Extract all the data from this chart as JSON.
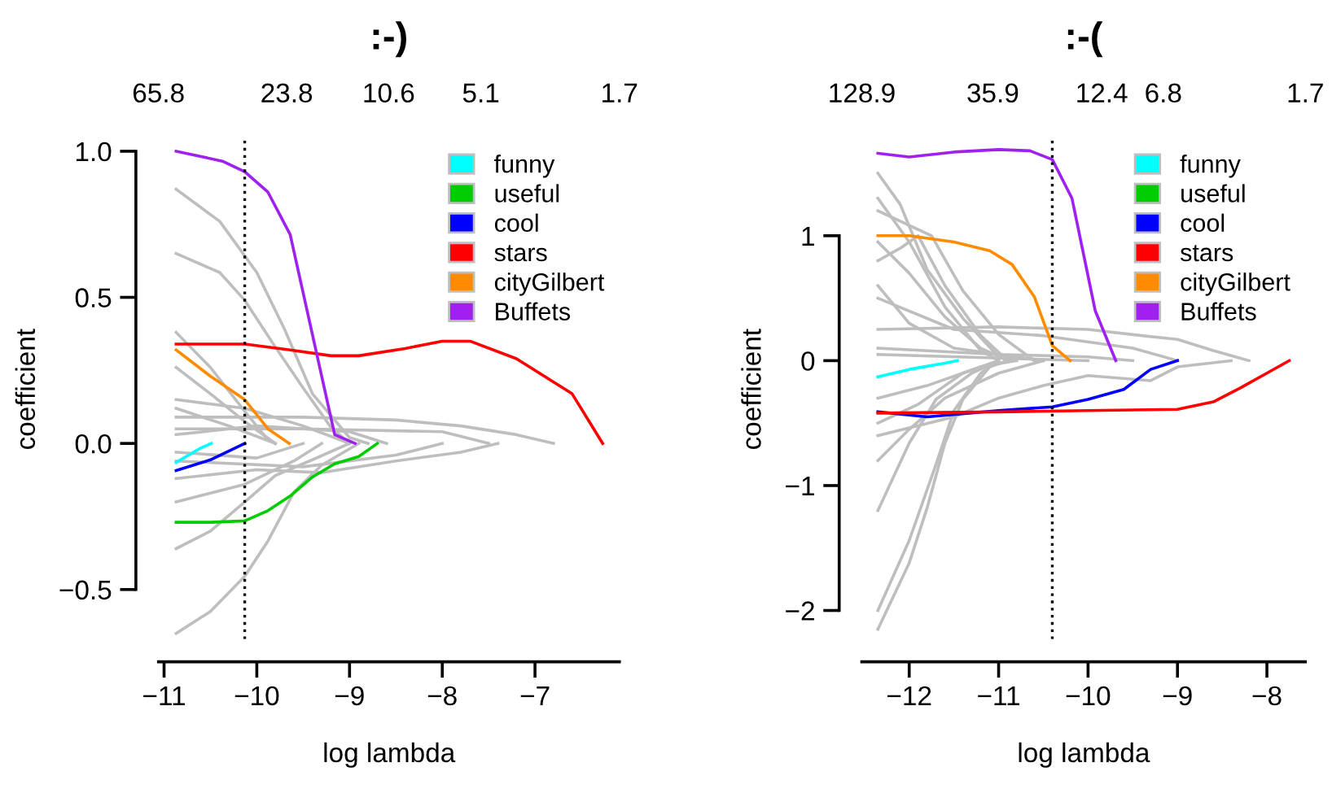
{
  "chart_data": [
    {
      "type": "line",
      "title": ":-)",
      "xlabel": "log lambda",
      "ylabel": "coefficient",
      "xlim": [
        -11.06,
        -6.09
      ],
      "ylim": [
        -0.67,
        1.04
      ],
      "xticks": [
        {
          "value": -11,
          "label": "−11"
        },
        {
          "value": -10,
          "label": "−10"
        },
        {
          "value": -9,
          "label": "−9"
        },
        {
          "value": -8,
          "label": "−8"
        },
        {
          "value": -7,
          "label": "−7"
        }
      ],
      "yticks": [
        {
          "value": -0.5,
          "label": "−0.5"
        },
        {
          "value": 0,
          "label": "0.0"
        },
        {
          "value": 0.5,
          "label": "0.5"
        },
        {
          "value": 1,
          "label": "1.0"
        }
      ],
      "log": "x2",
      "x2lim": [
        65.8,
        1.7
      ],
      "x2ticks": [
        65.8,
        23.8,
        10.6,
        5.1,
        1.7
      ],
      "ref_lines": [
        {
          "axis": "x",
          "value": -10.13,
          "color": "#000000",
          "line_style": "dotted"
        }
      ],
      "legend": "top right",
      "grid": false,
      "line_style": "solid",
      "series": [
        {
          "color": "#bebebe",
          "x": [
            -10.87,
            -10.4,
            -10.0,
            -9.7,
            -9.4,
            -9.0,
            -8.8
          ],
          "values": [
            0.87,
            0.76,
            0.585,
            0.39,
            0.17,
            0.02,
            0
          ]
        },
        {
          "color": "#bebebe",
          "x": [
            -10.87,
            -10.4,
            -10.13,
            -9.8,
            -9.5,
            -9.2,
            -9.0
          ],
          "values": [
            0.65,
            0.585,
            0.49,
            0.33,
            0.19,
            0.055,
            0
          ]
        },
        {
          "color": "#bebebe",
          "x": [
            -10.87,
            -10.5,
            -10.13,
            -9.9,
            -9.8
          ],
          "values": [
            0.38,
            0.26,
            0.11,
            0.02,
            0
          ]
        },
        {
          "color": "#bebebe",
          "x": [
            -10.87,
            -10.5,
            -10.13,
            -9.8
          ],
          "values": [
            0.26,
            0.17,
            0.075,
            0
          ]
        },
        {
          "color": "#bebebe",
          "x": [
            -10.87,
            -10.5,
            -10.13,
            -9.8,
            -9.4,
            -9.0
          ],
          "values": [
            -0.36,
            -0.3,
            -0.2,
            -0.11,
            -0.056,
            0
          ]
        },
        {
          "color": "#bebebe",
          "x": [
            -10.87,
            -10.5,
            -10.13,
            -9.88,
            -9.6,
            -9.3,
            -8.9
          ],
          "values": [
            -0.65,
            -0.575,
            -0.455,
            -0.334,
            -0.167,
            -0.074,
            0
          ]
        },
        {
          "color": "#bebebe",
          "x": [
            -10.87,
            -9.5,
            -8.5,
            -7.8,
            -7.2,
            -6.8
          ],
          "values": [
            0.09,
            0.09,
            0.08,
            0.06,
            0.03,
            0
          ]
        },
        {
          "color": "#bebebe",
          "x": [
            -10.87,
            -10.0,
            -9.3,
            -8.5,
            -7.8,
            -7.4
          ],
          "values": [
            -0.12,
            -0.09,
            -0.1,
            -0.06,
            -0.03,
            0
          ]
        },
        {
          "color": "#bebebe",
          "x": [
            -10.87,
            -9.5,
            -8.0,
            -7.5
          ],
          "values": [
            0.05,
            0.05,
            0.04,
            0
          ]
        },
        {
          "color": "#bebebe",
          "x": [
            -10.87,
            -9.5,
            -8.5,
            -8.0
          ],
          "values": [
            -0.06,
            -0.08,
            -0.04,
            0
          ]
        },
        {
          "color": "#bebebe",
          "x": [
            -10.87,
            -10.13,
            -9.5,
            -9.0
          ],
          "values": [
            0.15,
            0.12,
            0.06,
            0
          ]
        },
        {
          "color": "#bebebe",
          "x": [
            -10.87,
            -10.13,
            -9.6,
            -9.3
          ],
          "values": [
            -0.2,
            -0.14,
            -0.06,
            0
          ]
        },
        {
          "color": "#bebebe",
          "x": [
            -10.87,
            -10.0,
            -9.0,
            -8.6
          ],
          "values": [
            0.03,
            0.06,
            0.04,
            0
          ]
        },
        {
          "color": "#bebebe",
          "x": [
            -10.87,
            -10.0,
            -9.5
          ],
          "values": [
            -0.03,
            -0.05,
            0
          ]
        },
        {
          "color": "#bebebe",
          "x": [
            -10.87,
            -10.3,
            -9.8
          ],
          "values": [
            0.12,
            0.06,
            0
          ]
        },
        {
          "name": "funny",
          "color": "#00ffff",
          "x": [
            -10.87,
            -10.6,
            -10.49
          ],
          "values": [
            -0.065,
            -0.015,
            0
          ]
        },
        {
          "name": "useful",
          "color": "#00cd00",
          "x": [
            -10.87,
            -10.5,
            -10.13,
            -9.88,
            -9.64,
            -9.4,
            -9.16,
            -8.9,
            -8.7
          ],
          "values": [
            -0.27,
            -0.27,
            -0.265,
            -0.23,
            -0.18,
            -0.115,
            -0.07,
            -0.045,
            0
          ]
        },
        {
          "name": "cool",
          "color": "#0000ff",
          "x": [
            -10.87,
            -10.5,
            -10.13
          ],
          "values": [
            -0.093,
            -0.056,
            0
          ]
        },
        {
          "name": "stars",
          "color": "#ff0000",
          "x": [
            -10.87,
            -10.13,
            -9.64,
            -9.2,
            -8.9,
            -8.4,
            -8.0,
            -7.7,
            -7.2,
            -6.9,
            -6.6,
            -6.27
          ],
          "values": [
            0.34,
            0.34,
            0.32,
            0.3,
            0.3,
            0.325,
            0.35,
            0.35,
            0.29,
            0.23,
            0.17,
            0
          ]
        },
        {
          "name": "cityGilbert",
          "color": "#ff8c00",
          "x": [
            -10.87,
            -10.5,
            -10.13,
            -9.88,
            -9.65
          ],
          "values": [
            0.32,
            0.23,
            0.15,
            0.05,
            0
          ]
        },
        {
          "name": "Buffets",
          "color": "#a020f0",
          "x": [
            -10.87,
            -10.37,
            -10.13,
            -9.88,
            -9.64,
            -9.16,
            -8.94
          ],
          "values": [
            1.0,
            0.966,
            0.93,
            0.86,
            0.715,
            0.03,
            0
          ]
        }
      ]
    },
    {
      "type": "line",
      "title": ":-(",
      "xlabel": "log lambda",
      "ylabel": "coefficient",
      "xlim": [
        -12.53,
        -7.57
      ],
      "ylim": [
        -2.23,
        1.77
      ],
      "xticks": [
        {
          "value": -12,
          "label": "−12"
        },
        {
          "value": -11,
          "label": "−11"
        },
        {
          "value": -10,
          "label": "−10"
        },
        {
          "value": -9,
          "label": "−9"
        },
        {
          "value": -8,
          "label": "−8"
        }
      ],
      "yticks": [
        {
          "value": -2,
          "label": "−2"
        },
        {
          "value": -1,
          "label": "−1"
        },
        0,
        1
      ],
      "log": "x2",
      "x2lim": [
        128.9,
        1.7
      ],
      "x2ticks": [
        128.9,
        35.9,
        12.4,
        6.8,
        1.7
      ],
      "ref_lines": [
        {
          "axis": "x",
          "value": -10.4,
          "color": "#000000",
          "line_style": "dotted"
        }
      ],
      "legend": "top right",
      "grid": false,
      "line_style": "solid",
      "series": [
        {
          "color": "#bebebe",
          "x": [
            -12.35,
            -12.1,
            -11.8,
            -11.4,
            -11.0,
            -10.8
          ],
          "values": [
            1.5,
            1.25,
            0.73,
            0.34,
            0.03,
            0
          ]
        },
        {
          "color": "#bebebe",
          "x": [
            -12.35,
            -12.0,
            -11.6,
            -11.2,
            -11.0
          ],
          "values": [
            1.3,
            0.95,
            0.43,
            0.08,
            0
          ]
        },
        {
          "color": "#bebebe",
          "x": [
            -12.35,
            -11.75,
            -11.4,
            -11.0,
            -10.6
          ],
          "values": [
            1.2,
            1.0,
            0.56,
            0.21,
            0
          ]
        },
        {
          "color": "#bebebe",
          "x": [
            -12.35,
            -12.0,
            -11.6,
            -11.2,
            -10.9
          ],
          "values": [
            0.95,
            0.7,
            0.35,
            0.1,
            0
          ]
        },
        {
          "color": "#bebebe",
          "x": [
            -12.35,
            -11.0,
            -10.0,
            -9.4,
            -9.0,
            -8.6,
            -8.2
          ],
          "values": [
            0.25,
            0.27,
            0.25,
            0.2,
            0.17,
            0.08,
            0
          ]
        },
        {
          "color": "#bebebe",
          "x": [
            -12.35,
            -11.5,
            -10.5,
            -9.5,
            -9.0
          ],
          "values": [
            0.5,
            0.25,
            0.2,
            0.1,
            0
          ]
        },
        {
          "color": "#bebebe",
          "x": [
            -12.35,
            -12.0,
            -11.7,
            -11.3,
            -11.0
          ],
          "values": [
            -1.2,
            -0.66,
            -0.31,
            -0.1,
            0
          ]
        },
        {
          "color": "#bebebe",
          "x": [
            -12.35,
            -12.0,
            -11.8,
            -11.6,
            -11.4,
            -11.1,
            -10.9
          ],
          "values": [
            -2.15,
            -1.62,
            -1.18,
            -0.66,
            -0.31,
            -0.05,
            0
          ]
        },
        {
          "color": "#bebebe",
          "x": [
            -12.35,
            -12.0,
            -11.7,
            -11.5,
            -11.2,
            -11.0
          ],
          "values": [
            -2.0,
            -1.44,
            -0.83,
            -0.4,
            -0.1,
            0
          ]
        },
        {
          "color": "#bebebe",
          "x": [
            -12.35,
            -12.0,
            -11.6,
            -11.0,
            -10.5
          ],
          "values": [
            -0.8,
            -0.55,
            -0.3,
            -0.1,
            0
          ]
        },
        {
          "color": "#bebebe",
          "x": [
            -12.35,
            -11.5,
            -11.0,
            -10.5,
            -10.0,
            -9.3,
            -9.0,
            -8.4
          ],
          "values": [
            -0.6,
            -0.45,
            -0.3,
            -0.2,
            -0.12,
            -0.16,
            -0.05,
            0
          ]
        },
        {
          "color": "#bebebe",
          "x": [
            -12.35,
            -12.0,
            -11.5,
            -11.0,
            -10.5
          ],
          "values": [
            0.6,
            0.3,
            0.1,
            0.05,
            0
          ]
        },
        {
          "color": "#bebebe",
          "x": [
            -12.35,
            -11.8,
            -11.2,
            -10.8
          ],
          "values": [
            -0.3,
            -0.2,
            -0.05,
            0
          ]
        },
        {
          "color": "#bebebe",
          "x": [
            -12.35,
            -11.0,
            -10.0,
            -9.5
          ],
          "values": [
            0.1,
            0.05,
            0.03,
            0
          ]
        },
        {
          "color": "#bebebe",
          "x": [
            -12.35,
            -12.1,
            -11.9,
            -11.6,
            -11.2,
            -10.9
          ],
          "values": [
            0.8,
            0.9,
            1.0,
            0.6,
            0.2,
            0
          ]
        },
        {
          "color": "#bebebe",
          "x": [
            -12.35,
            -11.9,
            -11.4,
            -11.0
          ],
          "values": [
            -0.5,
            -0.35,
            -0.1,
            0
          ]
        },
        {
          "color": "#bebebe",
          "x": [
            -12.35,
            -11.0,
            -10.0
          ],
          "values": [
            0.05,
            0.02,
            0
          ]
        },
        {
          "name": "funny",
          "color": "#00ffff",
          "x": [
            -12.35,
            -12.0,
            -11.6,
            -11.46
          ],
          "values": [
            -0.13,
            -0.07,
            -0.02,
            0
          ]
        },
        {
          "name": "useful",
          "color": "#00cd00"
        },
        {
          "name": "cool",
          "color": "#0000ff",
          "x": [
            -12.35,
            -11.8,
            -11.0,
            -10.4,
            -10.0,
            -9.6,
            -9.3,
            -9.0
          ],
          "values": [
            -0.41,
            -0.45,
            -0.4,
            -0.37,
            -0.31,
            -0.23,
            -0.07,
            0
          ]
        },
        {
          "name": "stars",
          "color": "#ff0000",
          "x": [
            -12.35,
            -11.0,
            -10.0,
            -9.0,
            -8.6,
            -8.3,
            -8.0,
            -7.75
          ],
          "values": [
            -0.42,
            -0.41,
            -0.4,
            -0.39,
            -0.33,
            -0.22,
            -0.1,
            0
          ]
        },
        {
          "name": "cityGilbert",
          "color": "#ff8c00",
          "x": [
            -12.35,
            -12.0,
            -11.5,
            -11.1,
            -10.85,
            -10.6,
            -10.4,
            -10.2
          ],
          "values": [
            1.0,
            1.0,
            0.95,
            0.88,
            0.77,
            0.51,
            0.12,
            0
          ]
        },
        {
          "name": "Buffets",
          "color": "#a020f0",
          "x": [
            -12.35,
            -12.0,
            -11.5,
            -11.0,
            -10.65,
            -10.4,
            -10.18,
            -9.92,
            -9.69
          ],
          "values": [
            1.66,
            1.63,
            1.67,
            1.69,
            1.68,
            1.61,
            1.3,
            0.4,
            0
          ]
        }
      ]
    }
  ]
}
